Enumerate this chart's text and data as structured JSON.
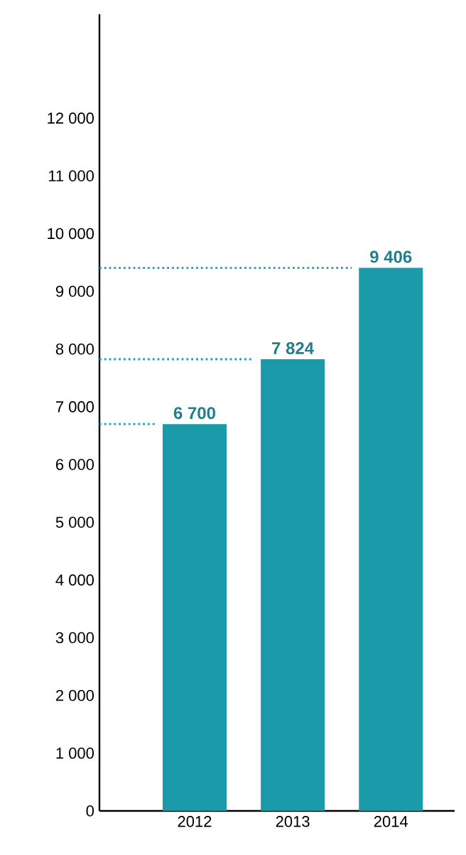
{
  "chart_data": {
    "type": "bar",
    "categories": [
      "2012",
      "2013",
      "2014"
    ],
    "values": [
      6700,
      7824,
      9406
    ],
    "value_labels": [
      "6 700",
      "7 824",
      "9 406"
    ],
    "color": "#1b9aaa",
    "ylim": [
      0,
      13800
    ],
    "yticks": [
      {
        "value": 0,
        "label": "0"
      },
      {
        "value": 1000,
        "label": "1 000"
      },
      {
        "value": 2000,
        "label": "2 000"
      },
      {
        "value": 3000,
        "label": "3 000"
      },
      {
        "value": 4000,
        "label": "4 000"
      },
      {
        "value": 5000,
        "label": "5 000"
      },
      {
        "value": 6000,
        "label": "6 000"
      },
      {
        "value": 7000,
        "label": "7 000"
      },
      {
        "value": 8000,
        "label": "8 000"
      },
      {
        "value": 9000,
        "label": "9 000"
      },
      {
        "value": 10000,
        "label": "10 000"
      },
      {
        "value": 11000,
        "label": "11 000"
      },
      {
        "value": 12000,
        "label": "12 000"
      }
    ],
    "ref_lines": [
      {
        "axis": "y",
        "value": 6700,
        "color": "#1aa0b0",
        "line_style": "dotted"
      },
      {
        "axis": "y",
        "value": 7824,
        "color": "#1aa0b0",
        "line_style": "dotted"
      },
      {
        "axis": "y",
        "value": 9406,
        "color": "#1aa0b0",
        "line_style": "dotted"
      }
    ],
    "grid": false
  }
}
